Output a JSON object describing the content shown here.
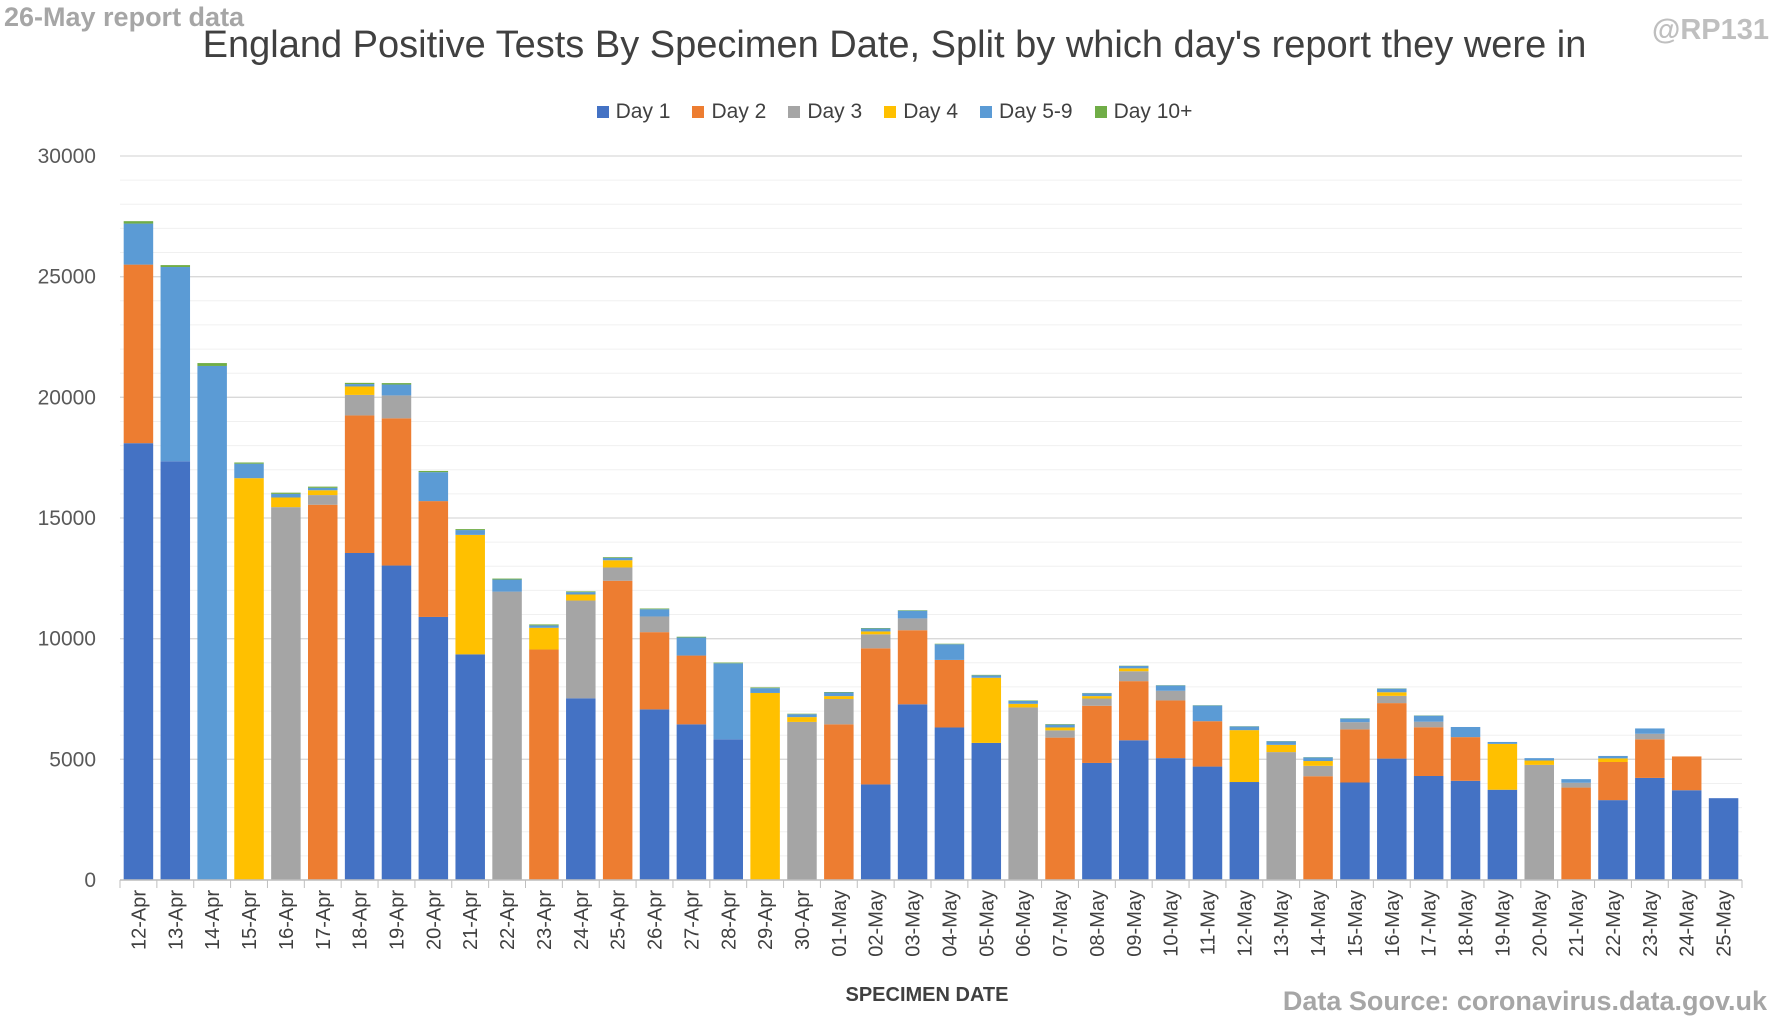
{
  "header": {
    "corner_left": "26-May report data",
    "corner_right": "@RP131",
    "title": "England Positive Tests By Specimen Date, Split by which day's report they were in",
    "source": "Data Source: coronavirus.data.gov.uk"
  },
  "chart_data": {
    "type": "bar",
    "stacked": true,
    "title": "England Positive Tests By Specimen Date, Split by which day's report they were in",
    "xlabel": "SPECIMEN DATE",
    "ylabel": "",
    "ylim": [
      0,
      30000
    ],
    "yticks": [
      0,
      5000,
      10000,
      15000,
      20000,
      25000,
      30000
    ],
    "grid": true,
    "legend_position": "top",
    "categories": [
      "12-Apr",
      "13-Apr",
      "14-Apr",
      "15-Apr",
      "16-Apr",
      "17-Apr",
      "18-Apr",
      "19-Apr",
      "20-Apr",
      "21-Apr",
      "22-Apr",
      "23-Apr",
      "24-Apr",
      "25-Apr",
      "26-Apr",
      "27-Apr",
      "28-Apr",
      "29-Apr",
      "30-Apr",
      "01-May",
      "02-May",
      "03-May",
      "04-May",
      "05-May",
      "06-May",
      "07-May",
      "08-May",
      "09-May",
      "10-May",
      "11-May",
      "12-May",
      "13-May",
      "14-May",
      "15-May",
      "16-May",
      "17-May",
      "18-May",
      "19-May",
      "20-May",
      "21-May",
      "22-May",
      "23-May",
      "24-May",
      "25-May"
    ],
    "series": [
      {
        "name": "Day 1",
        "color": "#4472c4",
        "values": [
          18100,
          17350,
          0,
          0,
          0,
          0,
          13550,
          13030,
          10900,
          9350,
          0,
          0,
          7530,
          0,
          7070,
          6450,
          5830,
          0,
          0,
          0,
          3960,
          7280,
          6320,
          5680,
          0,
          0,
          4850,
          5790,
          5050,
          4700,
          4060,
          0,
          0,
          4040,
          5030,
          4310,
          4110,
          3740,
          0,
          0,
          3310,
          4230,
          3720,
          3390
        ]
      },
      {
        "name": "Day 2",
        "color": "#ed7d31",
        "values": [
          7400,
          0,
          0,
          0,
          0,
          15550,
          5700,
          6100,
          4800,
          0,
          0,
          9550,
          0,
          12400,
          3200,
          2850,
          0,
          0,
          0,
          6450,
          5640,
          3070,
          2800,
          0,
          0,
          5900,
          2370,
          2450,
          2390,
          1880,
          0,
          0,
          4300,
          2200,
          2300,
          2020,
          1810,
          0,
          0,
          3830,
          1580,
          1600,
          1400,
          0
        ]
      },
      {
        "name": "Day 3",
        "color": "#a5a5a5",
        "values": [
          0,
          0,
          0,
          0,
          15450,
          400,
          850,
          950,
          0,
          0,
          11950,
          0,
          4050,
          550,
          650,
          0,
          0,
          0,
          6550,
          1050,
          580,
          490,
          0,
          0,
          7150,
          300,
          300,
          410,
          400,
          0,
          0,
          5300,
          430,
          300,
          300,
          230,
          0,
          0,
          4770,
          200,
          0,
          230,
          0,
          0
        ]
      },
      {
        "name": "Day 4",
        "color": "#ffc000",
        "values": [
          0,
          0,
          0,
          16650,
          400,
          200,
          350,
          0,
          0,
          4950,
          0,
          900,
          250,
          300,
          0,
          0,
          0,
          7750,
          200,
          120,
          120,
          0,
          0,
          2700,
          150,
          120,
          100,
          120,
          0,
          0,
          2150,
          300,
          200,
          0,
          150,
          0,
          0,
          1900,
          180,
          0,
          150,
          0,
          0,
          0
        ]
      },
      {
        "name": "Day 5-9",
        "color": "#5b9bd5",
        "values": [
          1700,
          8050,
          21300,
          600,
          150,
          100,
          100,
          450,
          1200,
          200,
          500,
          100,
          100,
          100,
          300,
          750,
          3150,
          200,
          120,
          150,
          120,
          320,
          650,
          100,
          120,
          120,
          120,
          100,
          220,
          650,
          150,
          150,
          150,
          150,
          150,
          250,
          420,
          80,
          100,
          150,
          100,
          220,
          0,
          0
        ]
      },
      {
        "name": "Day 10+",
        "color": "#70ad47",
        "values": [
          100,
          80,
          120,
          50,
          50,
          50,
          50,
          60,
          50,
          40,
          40,
          40,
          30,
          30,
          30,
          30,
          30,
          30,
          20,
          20,
          20,
          20,
          20,
          20,
          20,
          20,
          10,
          10,
          10,
          10,
          10,
          10,
          10,
          10,
          10,
          10,
          0,
          0,
          0,
          0,
          0,
          0,
          0,
          0
        ]
      }
    ]
  }
}
